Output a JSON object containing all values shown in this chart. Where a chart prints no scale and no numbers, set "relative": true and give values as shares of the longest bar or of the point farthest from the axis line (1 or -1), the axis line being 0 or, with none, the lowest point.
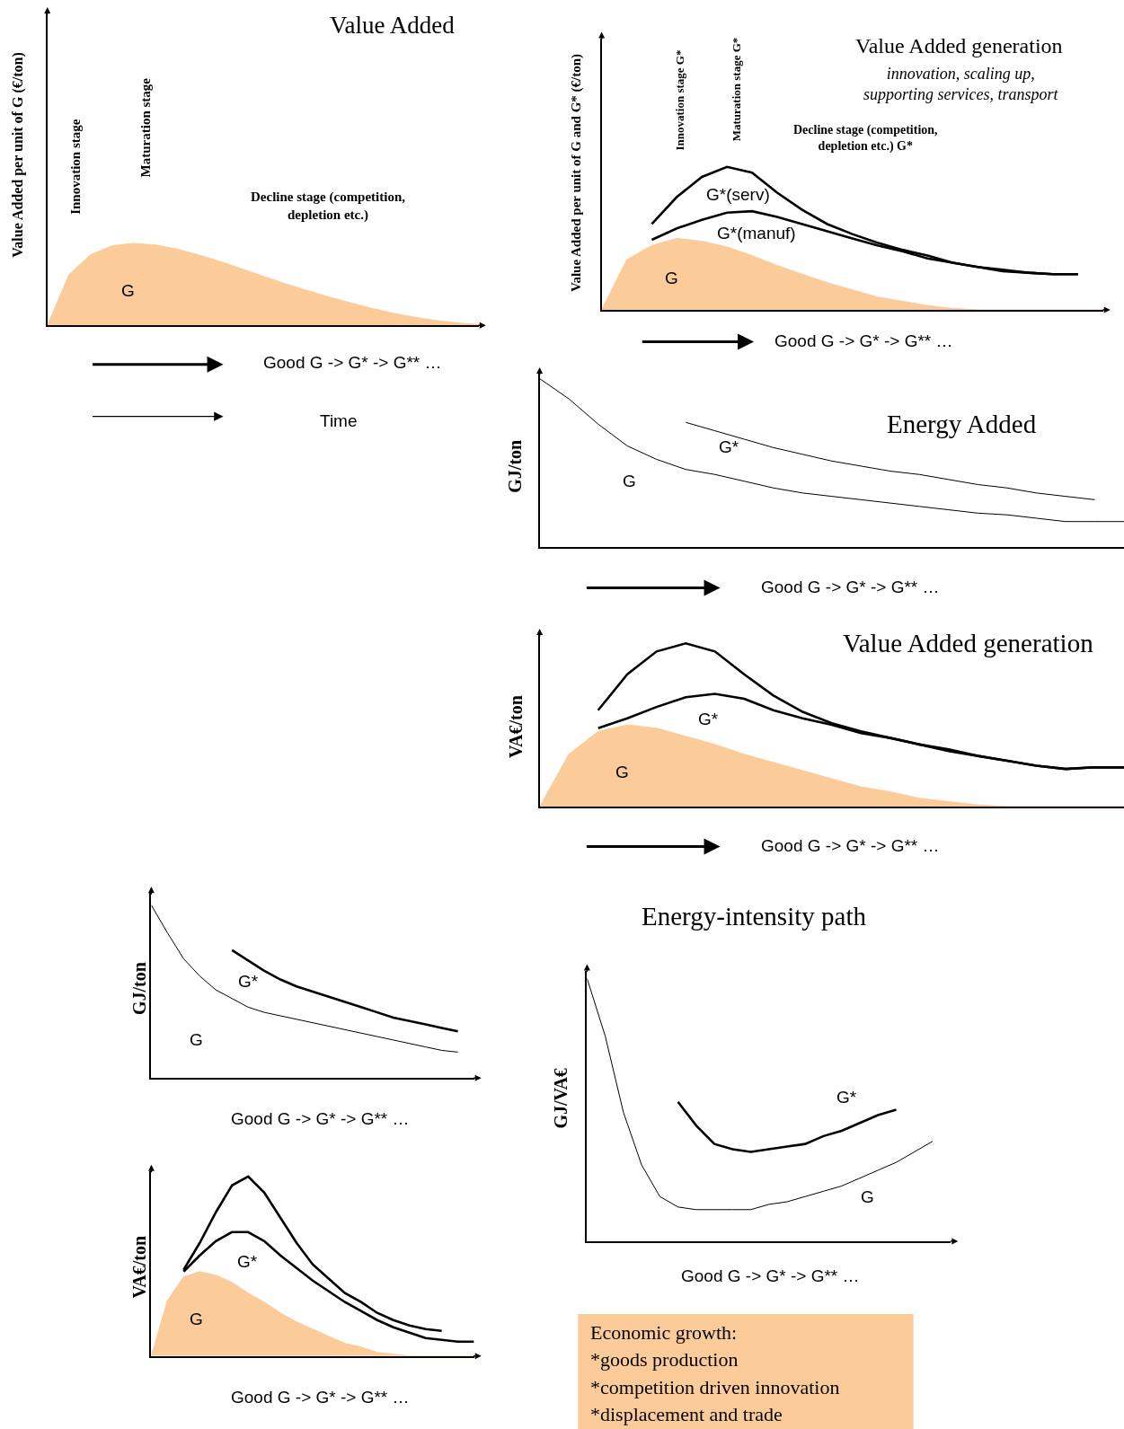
{
  "chart_data": [
    {
      "type": "line",
      "title": "Value Added",
      "ylabel": "Value Added per unit of G (€/ton)",
      "xlabel": "Good G -> G* -> G** …",
      "relative": true,
      "legend": false,
      "marker": "none",
      "annotations": [
        "Innovation stage",
        "Maturation stage",
        "Decline stage (competition,\ndepletion etc.)",
        "Time"
      ],
      "categories": [
        null,
        null,
        null,
        null,
        null,
        null,
        null,
        null,
        null,
        null,
        null,
        null,
        null,
        null,
        null,
        null,
        null,
        null,
        null,
        null,
        null
      ],
      "series": [
        {
          "name": "G",
          "type": "area",
          "color": "#fccb9a",
          "values": [
            0,
            0.62,
            0.86,
            0.97,
            1.0,
            0.98,
            0.93,
            0.86,
            0.78,
            0.69,
            0.6,
            0.51,
            0.43,
            0.35,
            0.28,
            0.21,
            0.15,
            0.1,
            0.06,
            0.03,
            0.01
          ]
        }
      ]
    },
    {
      "type": "line",
      "title": "Value Added generation",
      "subtitle": "innovation, scaling up,\nsupporting services, transport",
      "ylabel": "Value Added per unit of G and G* (€/ton)",
      "xlabel": "Good G -> G* -> G** …",
      "relative": true,
      "legend": false,
      "marker": "none",
      "annotations": [
        "Innovation stage G*",
        "Maturation stage G*",
        "Decline stage (competition,\ndepletion etc.) G*"
      ],
      "categories": [
        null,
        null,
        null,
        null,
        null,
        null,
        null,
        null,
        null,
        null,
        null,
        null,
        null,
        null,
        null,
        null,
        null,
        null,
        null,
        null,
        null
      ],
      "series": [
        {
          "name": "G",
          "type": "area",
          "color": "#fccb9a",
          "values": [
            0,
            0.35,
            0.45,
            0.5,
            0.48,
            0.44,
            0.38,
            0.31,
            0.25,
            0.19,
            0.14,
            0.09,
            0.06,
            0.03,
            0.01,
            0,
            0,
            0,
            0,
            0,
            0
          ]
        },
        {
          "name": "G*(manuf)",
          "type": "line",
          "color": "#000000",
          "values": [
            null,
            null,
            0.49,
            0.57,
            0.63,
            0.68,
            0.69,
            0.65,
            0.6,
            0.55,
            0.5,
            0.45,
            0.41,
            0.36,
            0.33,
            0.3,
            0.28,
            0.26,
            0.25,
            0.25,
            null
          ]
        },
        {
          "name": "G*(serv)",
          "type": "line",
          "color": "#000000",
          "values": [
            null,
            null,
            0.6,
            0.79,
            0.93,
            1.0,
            0.96,
            0.82,
            0.7,
            0.6,
            0.53,
            0.47,
            0.42,
            0.38,
            0.33,
            0.3,
            0.27,
            0.26,
            0.25,
            0.25,
            null
          ]
        }
      ]
    },
    {
      "type": "line",
      "title": "Energy Added",
      "ylabel": "GJ/ton",
      "xlabel": "Good G -> G* -> G** …",
      "relative": true,
      "legend": false,
      "marker": "none",
      "categories": [
        null,
        null,
        null,
        null,
        null,
        null,
        null,
        null,
        null,
        null,
        null,
        null,
        null,
        null,
        null,
        null,
        null,
        null,
        null,
        null,
        null
      ],
      "series": [
        {
          "name": "G",
          "type": "line",
          "color": "#000000",
          "values": [
            1.0,
            0.88,
            0.73,
            0.6,
            0.52,
            0.46,
            0.43,
            0.39,
            0.35,
            0.32,
            0.3,
            0.28,
            0.26,
            0.24,
            0.22,
            0.2,
            0.19,
            0.17,
            0.15,
            0.15,
            0.15
          ]
        },
        {
          "name": "G*",
          "type": "line",
          "color": "#000000",
          "values": [
            null,
            null,
            null,
            null,
            null,
            0.74,
            0.69,
            0.64,
            0.59,
            0.55,
            0.51,
            0.48,
            0.45,
            0.43,
            0.4,
            0.37,
            0.35,
            0.32,
            0.3,
            0.28,
            null
          ]
        }
      ]
    },
    {
      "type": "line",
      "title": "Value Added generation",
      "ylabel": "VA€/ton",
      "xlabel": "Good G -> G* -> G** …",
      "relative": true,
      "legend": false,
      "marker": "none",
      "categories": [
        null,
        null,
        null,
        null,
        null,
        null,
        null,
        null,
        null,
        null,
        null,
        null,
        null,
        null,
        null,
        null,
        null,
        null,
        null,
        null,
        null
      ],
      "series": [
        {
          "name": "G",
          "type": "area",
          "color": "#fccb9a",
          "values": [
            0,
            0.32,
            0.46,
            0.5,
            0.48,
            0.43,
            0.38,
            0.32,
            0.27,
            0.22,
            0.17,
            0.12,
            0.09,
            0.05,
            0.03,
            0.01,
            0,
            0,
            0,
            0,
            0
          ]
        },
        {
          "name": "G*",
          "type": "line",
          "color": "#000000",
          "values": [
            null,
            null,
            0.48,
            0.54,
            0.61,
            0.67,
            0.69,
            0.66,
            0.59,
            0.54,
            0.5,
            0.45,
            0.42,
            0.38,
            0.34,
            0.31,
            0.28,
            0.25,
            0.23,
            0.24,
            0.24
          ]
        },
        {
          "type": "line",
          "color": "#000000",
          "values": [
            null,
            null,
            0.59,
            0.81,
            0.95,
            1.0,
            0.95,
            0.81,
            0.68,
            0.58,
            0.51,
            0.46,
            0.42,
            0.38,
            0.35,
            0.31,
            0.28,
            0.25,
            0.23,
            0.24,
            0.24
          ]
        }
      ]
    },
    {
      "type": "line",
      "ylabel": "GJ/ton",
      "xlabel": "Good G -> G* -> G** …",
      "relative": true,
      "legend": false,
      "marker": "none",
      "categories": [
        null,
        null,
        null,
        null,
        null,
        null,
        null,
        null,
        null,
        null,
        null,
        null,
        null,
        null,
        null,
        null,
        null,
        null,
        null,
        null,
        null
      ],
      "series": [
        {
          "name": "G",
          "type": "line",
          "color": "#000000",
          "values": [
            1.0,
            0.84,
            0.69,
            0.59,
            0.51,
            0.46,
            0.41,
            0.38,
            0.36,
            0.34,
            0.32,
            0.3,
            0.28,
            0.26,
            0.24,
            0.22,
            0.2,
            0.18,
            0.16,
            0.15,
            null
          ]
        },
        {
          "name": "G*",
          "type": "line",
          "color": "#000000",
          "values": [
            null,
            null,
            null,
            null,
            null,
            0.74,
            0.68,
            0.62,
            0.57,
            0.53,
            0.5,
            0.47,
            0.44,
            0.41,
            0.38,
            0.35,
            0.33,
            0.31,
            0.29,
            0.27,
            null
          ]
        }
      ]
    },
    {
      "type": "line",
      "title": "Energy-intensity path",
      "ylabel": "GJ/VA€",
      "xlabel": "Good G -> G* -> G** …",
      "relative": true,
      "legend": false,
      "marker": "none",
      "categories": [
        null,
        null,
        null,
        null,
        null,
        null,
        null,
        null,
        null,
        null,
        null,
        null,
        null,
        null,
        null,
        null,
        null,
        null,
        null,
        null,
        null
      ],
      "series": [
        {
          "name": "G",
          "type": "line",
          "color": "#000000",
          "values": [
            1.0,
            0.78,
            0.49,
            0.29,
            0.17,
            0.13,
            0.12,
            0.12,
            0.12,
            0.12,
            0.14,
            0.15,
            0.17,
            0.19,
            0.21,
            0.24,
            0.27,
            0.3,
            0.34,
            0.38,
            null
          ]
        },
        {
          "name": "G*",
          "type": "line",
          "color": "#000000",
          "values": [
            null,
            null,
            null,
            null,
            null,
            0.53,
            0.44,
            0.37,
            0.35,
            0.34,
            0.35,
            0.36,
            0.37,
            0.4,
            0.42,
            0.45,
            0.48,
            0.5,
            null,
            null,
            null
          ]
        }
      ]
    },
    {
      "type": "line",
      "ylabel": "VA€/ton",
      "xlabel": "Good G -> G* -> G** …",
      "relative": true,
      "legend": false,
      "marker": "none",
      "categories": [
        null,
        null,
        null,
        null,
        null,
        null,
        null,
        null,
        null,
        null,
        null,
        null,
        null,
        null,
        null,
        null,
        null,
        null,
        null,
        null,
        null
      ],
      "series": [
        {
          "name": "G",
          "type": "area",
          "color": "#fccb9a",
          "values": [
            0,
            0.31,
            0.44,
            0.47,
            0.45,
            0.41,
            0.35,
            0.3,
            0.24,
            0.19,
            0.15,
            0.11,
            0.07,
            0.05,
            0.02,
            0.01,
            0,
            0,
            0,
            0,
            0
          ]
        },
        {
          "name": "G*",
          "type": "line",
          "color": "#000000",
          "values": [
            null,
            null,
            0.47,
            0.56,
            0.64,
            0.69,
            0.69,
            0.64,
            0.56,
            0.49,
            0.42,
            0.36,
            0.3,
            0.25,
            0.2,
            0.16,
            0.13,
            0.1,
            0.09,
            0.08,
            0.08
          ]
        },
        {
          "type": "line",
          "color": "#000000",
          "values": [
            null,
            null,
            0.48,
            0.63,
            0.8,
            0.95,
            1.0,
            0.91,
            0.77,
            0.63,
            0.51,
            0.43,
            0.35,
            0.3,
            0.24,
            0.2,
            0.17,
            0.15,
            0.14,
            null,
            null
          ]
        }
      ]
    },
    {
      "type": "other",
      "color": "#fccb9a",
      "annotations": [
        "Economic growth:",
        "*goods production",
        "*competition driven innovation",
        "*displacement and trade"
      ]
    }
  ]
}
